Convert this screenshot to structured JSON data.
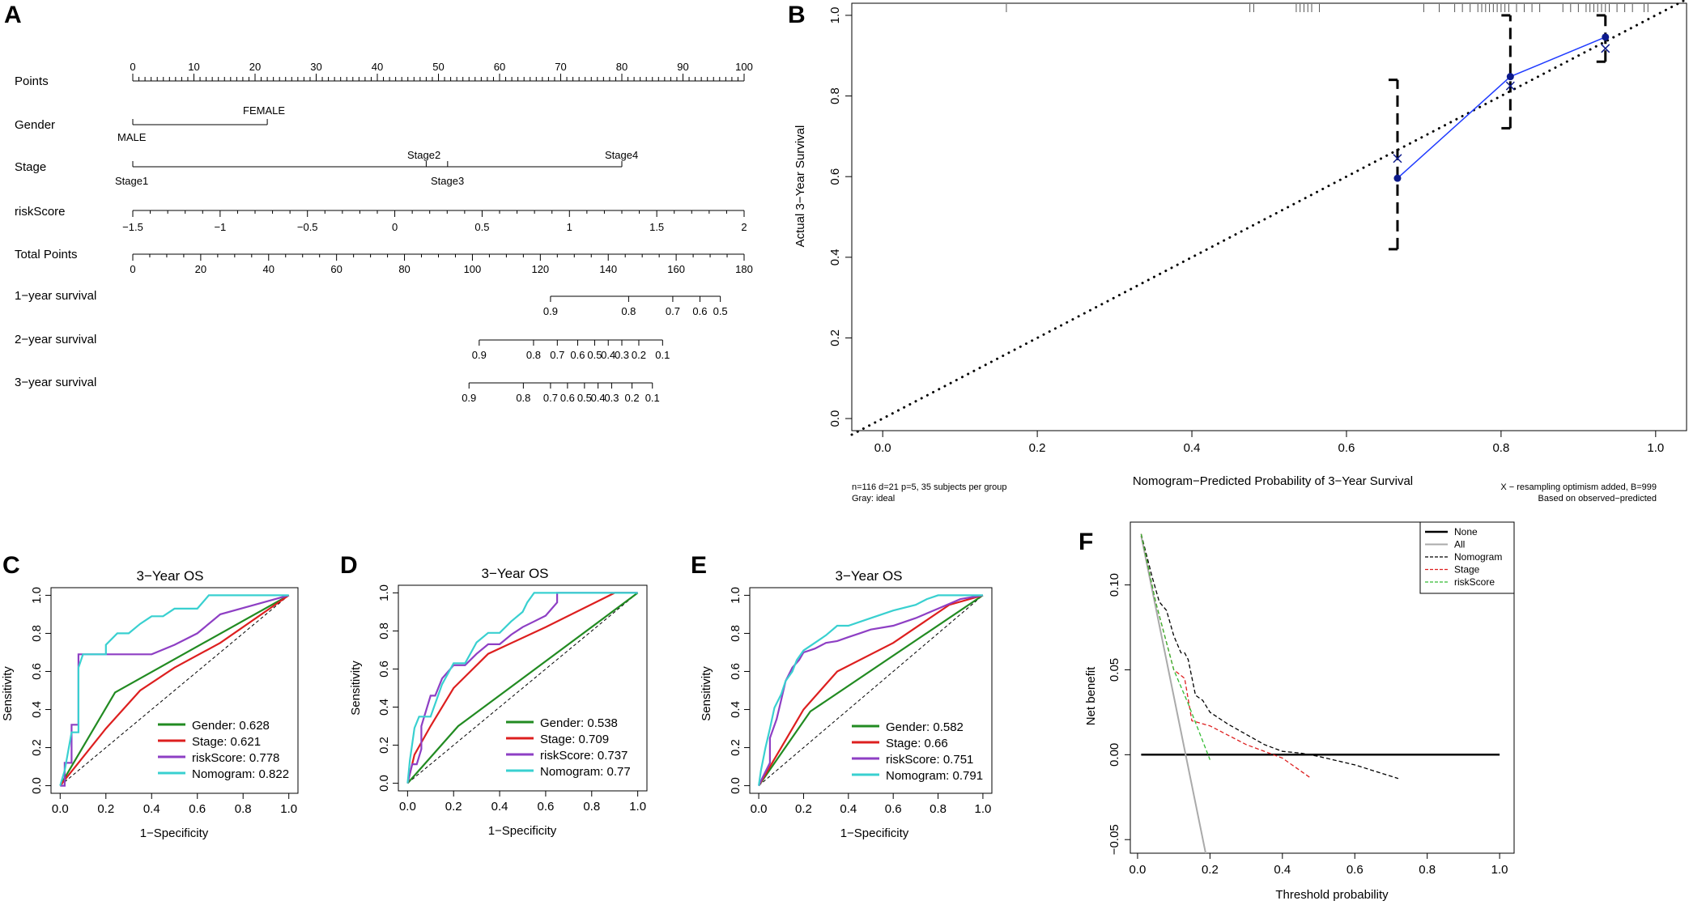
{
  "colors": {
    "gender": "#228B22",
    "stage": "#DD1F1F",
    "riskScore": "#8E3FC4",
    "nomogram": "#39D0D0",
    "calib_line": "#1F3BFF",
    "calib_point": "#0D1A8C"
  },
  "panel_labels": [
    "A",
    "B",
    "C",
    "D",
    "E",
    "F"
  ],
  "chart_data": [
    {
      "id": "A",
      "type": "nomogram",
      "rows": [
        {
          "label": "Points",
          "ticks": [
            "0",
            "10",
            "20",
            "30",
            "40",
            "50",
            "60",
            "70",
            "80",
            "90",
            "100"
          ],
          "values": [
            0,
            10,
            20,
            30,
            40,
            50,
            60,
            70,
            80,
            90,
            100
          ]
        },
        {
          "label": "Gender",
          "levels": [
            {
              "name": "MALE",
              "points": 0
            },
            {
              "name": "FEMALE",
              "points": 22
            }
          ]
        },
        {
          "label": "Stage",
          "levels": [
            {
              "name": "Stage1",
              "points": 0
            },
            {
              "name": "Stage2",
              "points": 48
            },
            {
              "name": "Stage3",
              "points": 51.5
            },
            {
              "name": "Stage4",
              "points": 80
            }
          ]
        },
        {
          "label": "riskScore",
          "ticks": [
            "−1.5",
            "−1",
            "−0.5",
            "0",
            "0.5",
            "1",
            "1.5",
            "2"
          ],
          "values": [
            -1.5,
            -1,
            -0.5,
            0,
            0.5,
            1,
            1.5,
            2
          ]
        },
        {
          "label": "Total Points",
          "ticks": [
            "0",
            "20",
            "40",
            "60",
            "80",
            "100",
            "120",
            "140",
            "160",
            "180"
          ],
          "values": [
            0,
            20,
            40,
            60,
            80,
            100,
            120,
            140,
            160,
            180
          ]
        },
        {
          "label": "1−year survival",
          "ticks": [
            "0.9",
            "0.8",
            "0.7",
            "0.6",
            "0.5"
          ],
          "values": [
            0.9,
            0.8,
            0.7,
            0.6,
            0.5
          ],
          "total_points_at": [
            123,
            146,
            159,
            167,
            173
          ]
        },
        {
          "label": "2−year survival",
          "ticks": [
            "0.9",
            "0.8",
            "0.7",
            "0.6",
            "0.5",
            "0.4",
            "0.3",
            "0.2",
            "0.1"
          ],
          "values": [
            0.9,
            0.8,
            0.7,
            0.6,
            0.5,
            0.4,
            0.3,
            0.2,
            0.1
          ],
          "total_points_at": [
            102,
            118,
            125,
            131,
            136,
            140,
            144,
            149,
            156
          ]
        },
        {
          "label": "3−year survival",
          "ticks": [
            "0.9",
            "0.8",
            "0.7",
            "0.6",
            "0.5",
            "0.4",
            "0.3",
            "0.2",
            "0.1"
          ],
          "values": [
            0.9,
            0.8,
            0.7,
            0.6,
            0.5,
            0.4,
            0.3,
            0.2,
            0.1
          ],
          "total_points_at": [
            99,
            115,
            123,
            128,
            133,
            137,
            141,
            147,
            153
          ]
        }
      ],
      "tick_labels_total_points": [
        "0",
        "20",
        "40",
        "60",
        "80",
        "100",
        "120",
        "140",
        "160",
        "180"
      ]
    },
    {
      "id": "B",
      "type": "calibration",
      "xlabel": "Nomogram−Predicted Probability of 3−Year Survival",
      "ylabel": "Actual 3−Year Survival",
      "xlim": [
        -0.04,
        1.04
      ],
      "ylim": [
        -0.03,
        1.03
      ],
      "xticks": [
        0,
        0.2,
        0.4,
        0.6,
        0.8,
        1.0
      ],
      "xtick_labels": [
        "0.0",
        "0.2",
        "0.4",
        "0.6",
        "0.8",
        "1.0"
      ],
      "yticks": [
        0,
        0.2,
        0.4,
        0.6,
        0.8,
        1.0
      ],
      "ytick_labels": [
        "0.0",
        "0.2",
        "0.4",
        "0.6",
        "0.8",
        "1.0"
      ],
      "predicted": [
        0.666,
        0.812,
        0.935
      ],
      "observed": [
        0.596,
        0.848,
        0.946
      ],
      "corrected": [
        0.645,
        0.825,
        0.918
      ],
      "ci_low": [
        0.42,
        0.72,
        0.885
      ],
      "ci_high": [
        0.84,
        1.0,
        1.0
      ],
      "rug": [
        0.16,
        0.475,
        0.48,
        0.535,
        0.54,
        0.545,
        0.55,
        0.555,
        0.565,
        0.7,
        0.72,
        0.74,
        0.75,
        0.76,
        0.77,
        0.775,
        0.78,
        0.785,
        0.79,
        0.795,
        0.8,
        0.805,
        0.81,
        0.82,
        0.83,
        0.84,
        0.85,
        0.88,
        0.89,
        0.9,
        0.91,
        0.915,
        0.92,
        0.925,
        0.93,
        0.935,
        0.94,
        0.95,
        0.96,
        0.97,
        0.985,
        0.99
      ],
      "note_left": [
        "n=116 d=21 p=5, 35 subjects per group",
        "Gray: ideal"
      ],
      "note_right": [
        "X − resampling optimism added, B=999",
        "Based on observed−predicted"
      ]
    },
    {
      "id": "C",
      "type": "roc",
      "title": "3−Year OS",
      "xlabel": "1−Specificity",
      "ylabel": "Sensitivity",
      "ticks": [
        "0.0",
        "0.2",
        "0.4",
        "0.6",
        "0.8",
        "1.0"
      ],
      "series": [
        {
          "name": "Gender",
          "auc": "0.628",
          "legend": "Gender: 0.628",
          "color_key": "gender",
          "x": [
            0,
            0.24,
            1
          ],
          "y": [
            0,
            0.49,
            1
          ]
        },
        {
          "name": "Stage",
          "auc": "0.621",
          "legend": "Stage: 0.621",
          "color_key": "stage",
          "x": [
            0,
            0.2,
            0.35,
            0.5,
            0.7,
            1
          ],
          "y": [
            0,
            0.3,
            0.5,
            0.62,
            0.75,
            1
          ]
        },
        {
          "name": "riskScore",
          "auc": "0.778",
          "legend": "riskScore: 0.778",
          "color_key": "riskScore",
          "x": [
            0,
            0.02,
            0.02,
            0.05,
            0.05,
            0.08,
            0.08,
            0.4,
            0.5,
            0.6,
            0.7,
            0.85,
            1
          ],
          "y": [
            0,
            0,
            0.12,
            0.12,
            0.32,
            0.32,
            0.69,
            0.69,
            0.74,
            0.8,
            0.9,
            0.95,
            1
          ]
        },
        {
          "name": "Nomogram",
          "auc": "0.822",
          "legend": "Nomogram: 0.822",
          "color_key": "nomogram",
          "x": [
            0,
            0.02,
            0.05,
            0.08,
            0.08,
            0.1,
            0.2,
            0.2,
            0.25,
            0.3,
            0.35,
            0.4,
            0.45,
            0.5,
            0.55,
            0.6,
            0.65,
            0.65,
            0.7,
            1
          ],
          "y": [
            0,
            0.08,
            0.28,
            0.28,
            0.62,
            0.69,
            0.69,
            0.74,
            0.8,
            0.8,
            0.85,
            0.89,
            0.89,
            0.93,
            0.93,
            0.93,
            1,
            1,
            1,
            1
          ]
        }
      ]
    },
    {
      "id": "D",
      "type": "roc",
      "title": "3−Year OS",
      "xlabel": "1−Specificity",
      "ylabel": "Sensitivity",
      "ticks": [
        "0.0",
        "0.2",
        "0.4",
        "0.6",
        "0.8",
        "1.0"
      ],
      "series": [
        {
          "name": "Gender",
          "auc": "0.538",
          "legend": "Gender: 0.538",
          "color_key": "gender",
          "x": [
            0,
            0.22,
            1
          ],
          "y": [
            0,
            0.3,
            1
          ]
        },
        {
          "name": "Stage",
          "auc": "0.709",
          "legend": "Stage: 0.709",
          "color_key": "stage",
          "x": [
            0,
            0.03,
            0.1,
            0.2,
            0.35,
            0.6,
            0.9,
            1
          ],
          "y": [
            0,
            0.15,
            0.3,
            0.5,
            0.68,
            0.82,
            1,
            1
          ]
        },
        {
          "name": "riskScore",
          "auc": "0.737",
          "legend": "riskScore: 0.737",
          "color_key": "riskScore",
          "x": [
            0,
            0.02,
            0.04,
            0.06,
            0.06,
            0.1,
            0.12,
            0.15,
            0.2,
            0.25,
            0.3,
            0.35,
            0.4,
            0.45,
            0.5,
            0.55,
            0.6,
            0.65,
            0.65,
            1
          ],
          "y": [
            0,
            0.1,
            0.1,
            0.18,
            0.3,
            0.46,
            0.46,
            0.55,
            0.62,
            0.62,
            0.68,
            0.73,
            0.73,
            0.78,
            0.82,
            0.85,
            0.88,
            0.95,
            1,
            1
          ]
        },
        {
          "name": "Nomogram",
          "auc": "0.77",
          "legend": "Nomogram: 0.77",
          "color_key": "nomogram",
          "x": [
            0,
            0.01,
            0.03,
            0.05,
            0.1,
            0.15,
            0.2,
            0.25,
            0.3,
            0.35,
            0.4,
            0.45,
            0.5,
            0.52,
            0.55,
            0.6,
            0.7,
            1
          ],
          "y": [
            0,
            0.12,
            0.29,
            0.35,
            0.35,
            0.52,
            0.63,
            0.63,
            0.74,
            0.79,
            0.79,
            0.85,
            0.9,
            0.95,
            1,
            1,
            1,
            1
          ]
        }
      ]
    },
    {
      "id": "E",
      "type": "roc",
      "title": "3−Year OS",
      "xlabel": "1−Specificity",
      "ylabel": "Sensitivity",
      "ticks": [
        "0.0",
        "0.2",
        "0.4",
        "0.6",
        "0.8",
        "1.0"
      ],
      "series": [
        {
          "name": "Gender",
          "auc": "0.582",
          "legend": "Gender: 0.582",
          "color_key": "gender",
          "x": [
            0,
            0.23,
            1
          ],
          "y": [
            0,
            0.39,
            1
          ]
        },
        {
          "name": "Stage",
          "auc": "0.66",
          "legend": "Stage: 0.66",
          "color_key": "stage",
          "x": [
            0,
            0.1,
            0.2,
            0.35,
            0.6,
            0.85,
            1
          ],
          "y": [
            0,
            0.2,
            0.4,
            0.6,
            0.75,
            0.95,
            1
          ]
        },
        {
          "name": "riskScore",
          "auc": "0.751",
          "legend": "riskScore: 0.751",
          "color_key": "riskScore",
          "x": [
            0,
            0.02,
            0.05,
            0.05,
            0.08,
            0.1,
            0.12,
            0.15,
            0.18,
            0.2,
            0.25,
            0.3,
            0.35,
            0.4,
            0.45,
            0.5,
            0.6,
            0.7,
            0.8,
            0.9,
            1
          ],
          "y": [
            0,
            0.05,
            0.12,
            0.25,
            0.35,
            0.45,
            0.55,
            0.62,
            0.66,
            0.7,
            0.72,
            0.75,
            0.76,
            0.78,
            0.8,
            0.82,
            0.84,
            0.88,
            0.93,
            0.98,
            1
          ]
        },
        {
          "name": "Nomogram",
          "auc": "0.791",
          "legend": "Nomogram: 0.791",
          "color_key": "nomogram",
          "x": [
            0,
            0.01,
            0.03,
            0.05,
            0.07,
            0.1,
            0.12,
            0.15,
            0.17,
            0.2,
            0.25,
            0.3,
            0.35,
            0.4,
            0.5,
            0.6,
            0.7,
            0.75,
            0.8,
            1
          ],
          "y": [
            0,
            0.08,
            0.2,
            0.3,
            0.41,
            0.48,
            0.55,
            0.6,
            0.66,
            0.71,
            0.75,
            0.79,
            0.84,
            0.84,
            0.88,
            0.92,
            0.95,
            0.98,
            1,
            1
          ]
        }
      ]
    },
    {
      "id": "F",
      "type": "line",
      "subtype": "decision_curve",
      "xlabel": "Threshold probability",
      "ylabel": "Net benefit",
      "xlim": [
        -0.02,
        1.04
      ],
      "ylim": [
        -0.058,
        0.137
      ],
      "xticks": [
        0,
        0.2,
        0.4,
        0.6,
        0.8,
        1.0
      ],
      "xtick_labels": [
        "0.0",
        "0.2",
        "0.4",
        "0.6",
        "0.8",
        "1.0"
      ],
      "yticks": [
        -0.05,
        0,
        0.05,
        0.1
      ],
      "ytick_labels": [
        "−0.05",
        "0.00",
        "0.05",
        "0.10"
      ],
      "series": [
        {
          "name": "None",
          "style": "solid",
          "color": "#000000",
          "width": 2.5,
          "x": [
            0.01,
            1.0
          ],
          "y": [
            0,
            0
          ]
        },
        {
          "name": "All",
          "style": "solid",
          "color": "#AAAAAA",
          "width": 2,
          "x": [
            0.01,
            0.19
          ],
          "y": [
            0.129,
            -0.06
          ]
        },
        {
          "name": "Nomogram",
          "style": "dashed",
          "color": "#000000",
          "width": 1.3,
          "x": [
            0.01,
            0.04,
            0.06,
            0.08,
            0.1,
            0.12,
            0.13,
            0.14,
            0.16,
            0.18,
            0.2,
            0.25,
            0.3,
            0.35,
            0.4,
            0.45,
            0.5,
            0.6,
            0.72
          ],
          "y": [
            0.13,
            0.105,
            0.09,
            0.085,
            0.07,
            0.06,
            0.06,
            0.056,
            0.035,
            0.032,
            0.025,
            0.018,
            0.012,
            0.006,
            0.002,
            0.001,
            -0.001,
            -0.006,
            -0.014
          ]
        },
        {
          "name": "Stage",
          "style": "dashed",
          "color": "#DD1F1F",
          "width": 1.3,
          "x": [
            0.01,
            0.05,
            0.1,
            0.13,
            0.15,
            0.2,
            0.3,
            0.4,
            0.48
          ],
          "y": [
            0.13,
            0.09,
            0.05,
            0.045,
            0.02,
            0.017,
            0.006,
            -0.002,
            -0.014
          ]
        },
        {
          "name": "riskScore",
          "style": "dashed",
          "color": "#33BB33",
          "width": 1.3,
          "x": [
            0.01,
            0.05,
            0.1,
            0.14,
            0.2
          ],
          "y": [
            0.13,
            0.09,
            0.05,
            0.03,
            -0.003
          ]
        }
      ],
      "legend": [
        "None",
        "All",
        "Nomogram",
        "Stage",
        "riskScore"
      ]
    }
  ]
}
